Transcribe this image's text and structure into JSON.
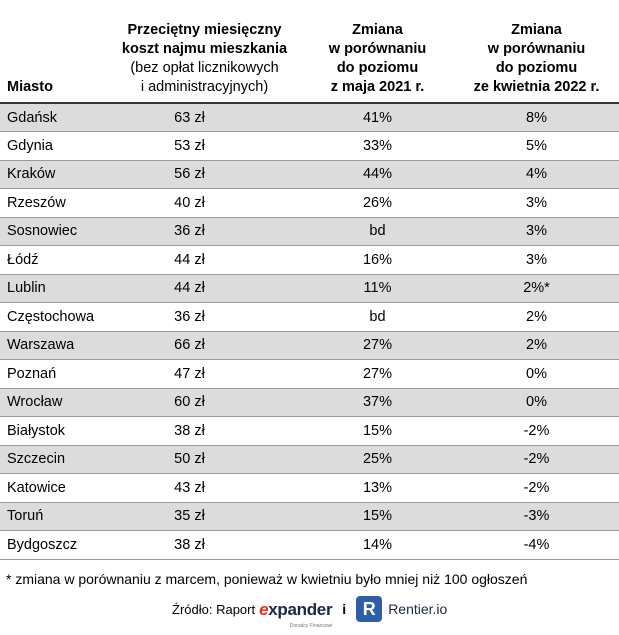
{
  "header": {
    "city": "Miasto",
    "cost_line1": "Przeciętny miesięczny",
    "cost_line2": "koszt najmu mieszkania",
    "cost_line3": "(bez opłat licznikowych",
    "cost_line4": "i administracyjnych)",
    "ch2021_line1": "Zmiana",
    "ch2021_line2": "w porównaniu",
    "ch2021_line3": "do poziomu",
    "ch2021_line4": "z maja 2021 r.",
    "ch2022_line1": "Zmiana",
    "ch2022_line2": "w porównaniu",
    "ch2022_line3": "do poziomu",
    "ch2022_line4": "ze kwietnia 2022 r."
  },
  "rows": [
    {
      "city": "Gdańsk",
      "cost": "63 zł",
      "ch2021": "41%",
      "ch2022": "8%"
    },
    {
      "city": "Gdynia",
      "cost": "53 zł",
      "ch2021": "33%",
      "ch2022": "5%"
    },
    {
      "city": "Kraków",
      "cost": "56 zł",
      "ch2021": "44%",
      "ch2022": "4%"
    },
    {
      "city": "Rzeszów",
      "cost": "40 zł",
      "ch2021": "26%",
      "ch2022": "3%"
    },
    {
      "city": "Sosnowiec",
      "cost": "36 zł",
      "ch2021": "bd",
      "ch2022": "3%"
    },
    {
      "city": "Łódź",
      "cost": "44 zł",
      "ch2021": "16%",
      "ch2022": "3%"
    },
    {
      "city": "Lublin",
      "cost": "44 zł",
      "ch2021": "11%",
      "ch2022": "2%*"
    },
    {
      "city": "Częstochowa",
      "cost": "36 zł",
      "ch2021": "bd",
      "ch2022": "2%"
    },
    {
      "city": "Warszawa",
      "cost": "66 zł",
      "ch2021": "27%",
      "ch2022": "2%"
    },
    {
      "city": "Poznań",
      "cost": "47 zł",
      "ch2021": "27%",
      "ch2022": "0%"
    },
    {
      "city": "Wrocław",
      "cost": "60 zł",
      "ch2021": "37%",
      "ch2022": "0%"
    },
    {
      "city": "Białystok",
      "cost": "38 zł",
      "ch2021": "15%",
      "ch2022": "-2%"
    },
    {
      "city": "Szczecin",
      "cost": "50 zł",
      "ch2021": "25%",
      "ch2022": "-2%"
    },
    {
      "city": "Katowice",
      "cost": "43 zł",
      "ch2021": "13%",
      "ch2022": "-2%"
    },
    {
      "city": "Toruń",
      "cost": "35 zł",
      "ch2021": "15%",
      "ch2022": "-3%"
    },
    {
      "city": "Bydgoszcz",
      "cost": "38 zł",
      "ch2021": "14%",
      "ch2022": "-4%"
    }
  ],
  "footnote": "* zmiana w porównaniu z marcem, ponieważ w kwietniu było mniej niż 100 ogłoszeń",
  "source": {
    "label": "Źródło: Raport",
    "expander_e": "e",
    "expander_rest": "xpander",
    "expander_tagline": "Doradcy Finansowi",
    "conjunction": "i",
    "rentier_mark": "R",
    "rentier_name": "Rentier.io"
  },
  "colors": {
    "row_shade": "#dcdcdc",
    "expander_red": "#e2341d",
    "expander_navy": "#1b2747",
    "rentier_blue": "#2f5fa8"
  }
}
